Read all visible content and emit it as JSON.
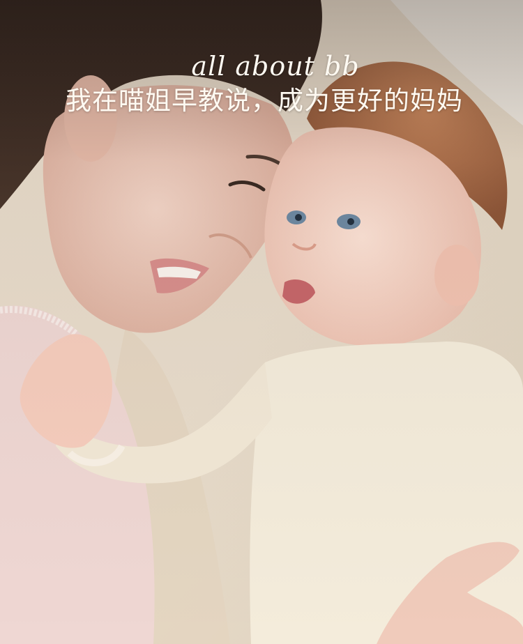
{
  "caption": {
    "script_line": "all about bb",
    "headline": "我在喵姐早教说，成为更好的妈妈"
  },
  "photo": {
    "subject": "mother-and-baby-photo"
  },
  "colors": {
    "caption_text": "#fffaf2",
    "mother_hair": "#3a2a22",
    "baby_hair": "#b0714b",
    "baby_onesie": "#f3ead8",
    "mother_top": "#efd6d2",
    "blanket": "#e4d6c0"
  }
}
